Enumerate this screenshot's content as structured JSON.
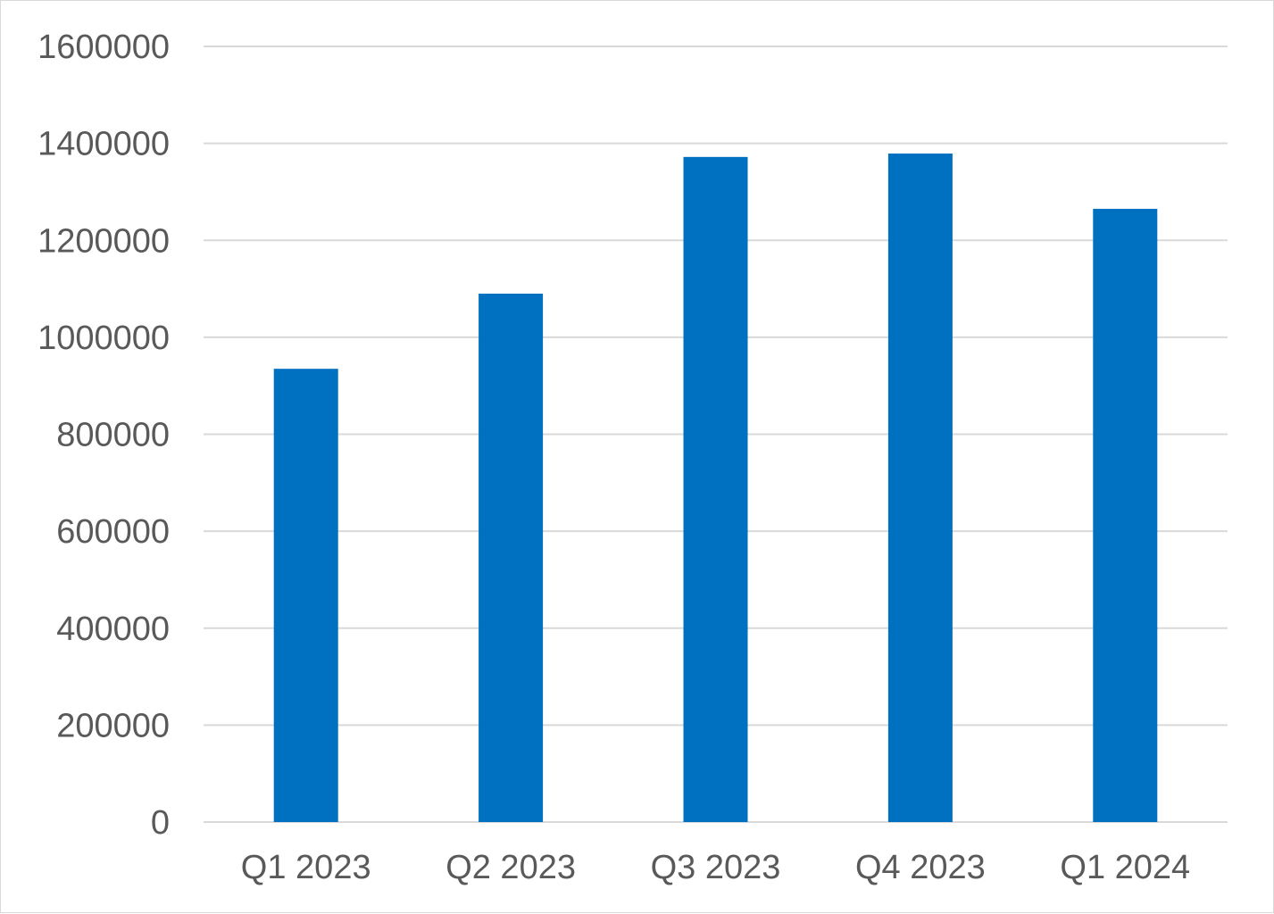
{
  "chart_data": {
    "type": "bar",
    "title": "",
    "xlabel": "",
    "ylabel": "",
    "categories": [
      "Q1 2023",
      "Q2 2023",
      "Q3 2023",
      "Q4 2023",
      "Q1 2024"
    ],
    "values": [
      935000,
      1090000,
      1372000,
      1379000,
      1265000
    ],
    "ylim": [
      0,
      1600000
    ],
    "yticks": [
      "0",
      "200000",
      "400000",
      "600000",
      "800000",
      "1000000",
      "1200000",
      "1400000",
      "1600000"
    ],
    "grid": true,
    "legend": "none",
    "colors": {
      "bar": "#0070C0",
      "gridline": "#D9D9D9",
      "tick_text": "#595959"
    }
  }
}
